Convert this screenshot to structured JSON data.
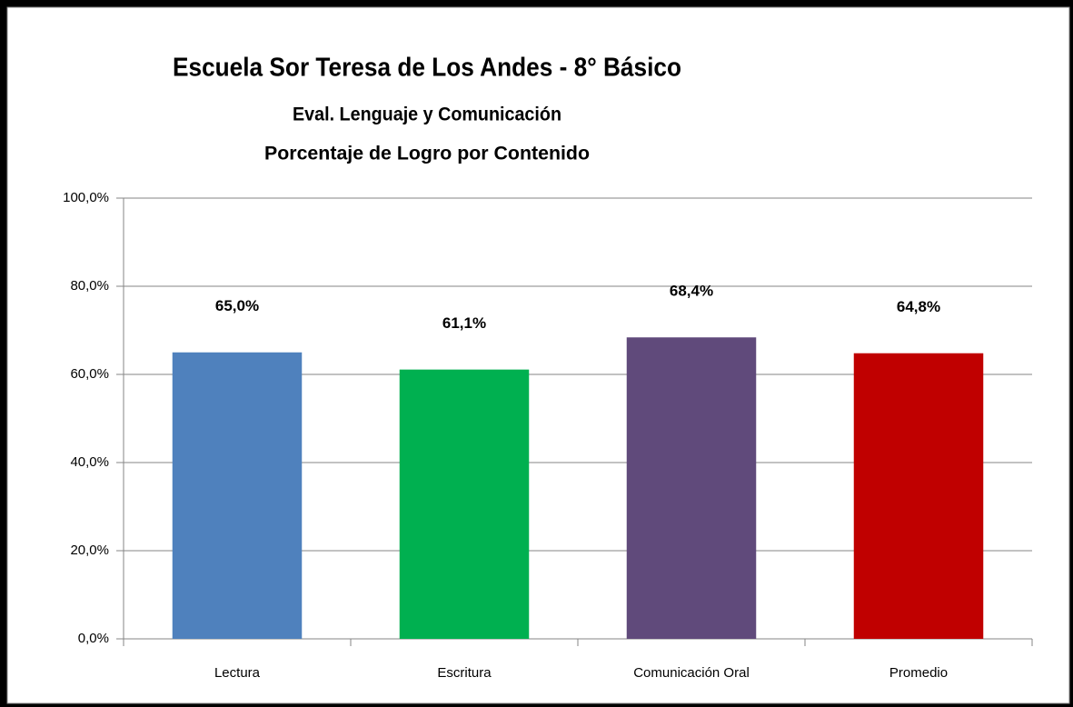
{
  "chart_data": {
    "type": "bar",
    "title": "Escuela Sor Teresa de Los Andes - 8° Básico",
    "subtitle": "Eval. Lenguaje y Comunicación",
    "subtitle2": "Porcentaje de Logro por Contenido",
    "categories": [
      "Lectura",
      "Escritura",
      "Comunicación Oral",
      "Promedio"
    ],
    "values": [
      65.0,
      61.1,
      68.4,
      64.8
    ],
    "value_labels": [
      "65,0%",
      "61,1%",
      "68,4%",
      "64,8%"
    ],
    "colors": [
      "#4f81bd",
      "#00b050",
      "#604a7b",
      "#c00000"
    ],
    "ylim": [
      0,
      100
    ],
    "yticks": [
      {
        "value": 0,
        "label": "0,0%"
      },
      {
        "value": 20,
        "label": "20,0%"
      },
      {
        "value": 40,
        "label": "40,0%"
      },
      {
        "value": 60,
        "label": "60,0%"
      },
      {
        "value": 80,
        "label": "80,0%"
      },
      {
        "value": 100,
        "label": "100,0%"
      }
    ],
    "grid": true
  }
}
